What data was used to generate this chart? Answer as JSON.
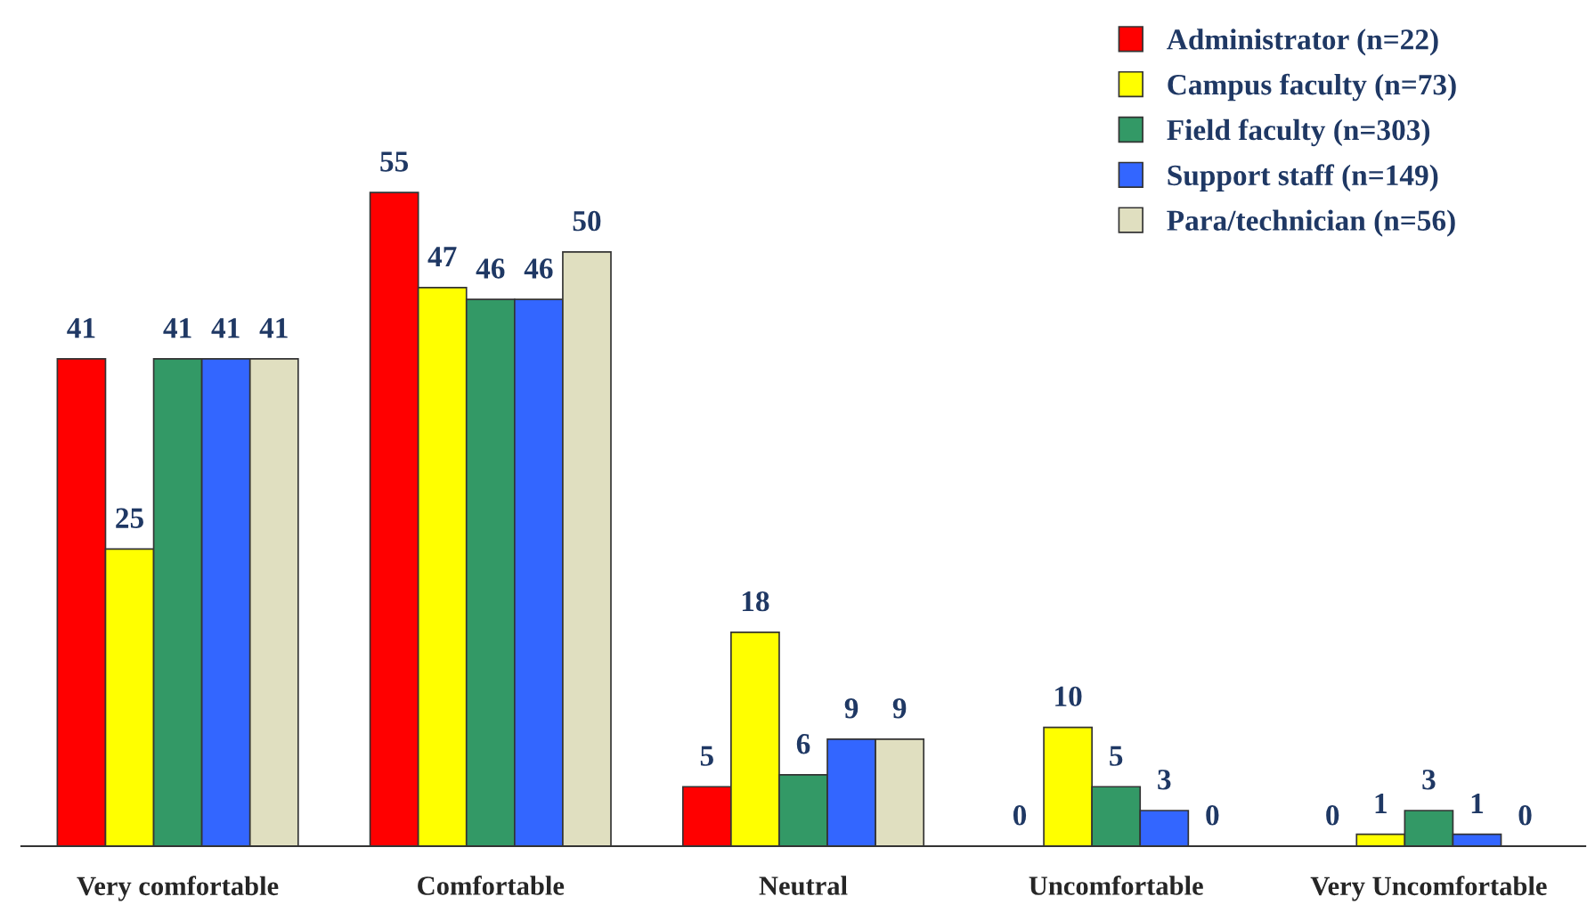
{
  "chart_data": {
    "type": "bar",
    "categories": [
      "Very comfortable",
      "Comfortable",
      "Neutral",
      "Uncomfortable",
      "Very Uncomfortable"
    ],
    "series": [
      {
        "name": "Administrator (n=22)",
        "color": "#ff0000",
        "values": [
          41,
          55,
          5,
          0,
          0
        ]
      },
      {
        "name": "Campus faculty (n=73)",
        "color": "#ffff00",
        "values": [
          25,
          47,
          18,
          10,
          1
        ]
      },
      {
        "name": "Field faculty (n=303)",
        "color": "#339966",
        "values": [
          41,
          46,
          6,
          5,
          3
        ]
      },
      {
        "name": "Support staff (n=149)",
        "color": "#3366ff",
        "values": [
          41,
          46,
          9,
          3,
          1
        ]
      },
      {
        "name": "Para/technician (n=56)",
        "color": "#e0dfc0",
        "values": [
          41,
          50,
          9,
          0,
          0
        ]
      }
    ],
    "data_labels": true,
    "legend": "top right"
  }
}
